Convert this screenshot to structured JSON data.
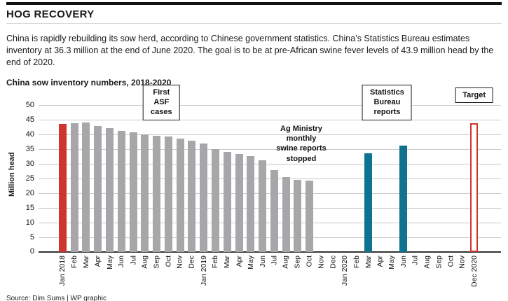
{
  "header": {
    "title": "HOG RECOVERY",
    "description": "China is rapidly rebuilding its sow herd, according to Chinese government statistics. China’s Statistics Bureau estimates inventory at 36.3 million at the end of June 2020. The goal is to be at pre-African swine fever levels of 43.9 million head by the end of 2020."
  },
  "chart": {
    "subtitle": "China sow inventory numbers, 2018-2020",
    "ylabel": "Million head"
  },
  "chart_data": {
    "type": "bar",
    "title": "China sow inventory numbers, 2018-2020",
    "xlabel": "",
    "ylabel": "Million head",
    "ylim": [
      0,
      50
    ],
    "ytick_step": 5,
    "grid": true,
    "categories": [
      "Jan 2018",
      "Feb",
      "Mar",
      "Apr",
      "May",
      "Jun",
      "Jul",
      "Aug",
      "Sep",
      "Oct",
      "Nov",
      "Dec",
      "Jan 2019",
      "Feb",
      "Mar",
      "Apr",
      "May",
      "Jun",
      "Jul",
      "Aug",
      "Sep",
      "Oct",
      "Nov",
      "Dec",
      "Jan 2020",
      "Feb",
      "Mar",
      "Apr",
      "May",
      "Jun",
      "Jul",
      "Aug",
      "Sep",
      "Oct",
      "Nov",
      "Dec 2020"
    ],
    "values": [
      43.6,
      43.8,
      44.0,
      42.9,
      42.1,
      41.2,
      40.7,
      40.0,
      39.5,
      39.3,
      38.6,
      37.9,
      36.9,
      35.0,
      34.0,
      33.3,
      32.6,
      31.2,
      27.9,
      25.5,
      24.5,
      24.3,
      null,
      null,
      null,
      null,
      33.6,
      null,
      null,
      36.3,
      null,
      null,
      null,
      null,
      null,
      43.9
    ],
    "bar_styles": [
      "red",
      "gray",
      "gray",
      "gray",
      "gray",
      "gray",
      "gray",
      "gray",
      "gray",
      "gray",
      "gray",
      "gray",
      "gray",
      "gray",
      "gray",
      "gray",
      "gray",
      "gray",
      "gray",
      "gray",
      "gray",
      "gray",
      null,
      null,
      null,
      null,
      "teal",
      null,
      null,
      "teal",
      null,
      null,
      null,
      null,
      null,
      "target"
    ],
    "colors": {
      "red": "#d0342c",
      "gray": "#a7a7aa",
      "teal": "#0d7391",
      "target_outline": "#d0342c",
      "grid": "#c9c9c9",
      "axis": "#333333"
    },
    "annotations": [
      {
        "id": "first-asf-cases",
        "text": "First\nASF\ncases",
        "style": "box",
        "slot": 8.4,
        "top": -8
      },
      {
        "id": "ag-ministry-note",
        "text": "Ag Ministry\nmonthly\nswine reports\nstopped",
        "style": "plain",
        "slot": 20.3,
        "top": 48
      },
      {
        "id": "statistics-bureau-reports",
        "text": "Statistics\nBureau\nreports",
        "style": "box",
        "slot": 27.6,
        "top": -8
      },
      {
        "id": "target",
        "text": "Target",
        "style": "box",
        "slot": 35.0,
        "top": -4
      }
    ],
    "legend": null
  },
  "footer": {
    "source": "Source: Dim Sums | WP graphic"
  }
}
